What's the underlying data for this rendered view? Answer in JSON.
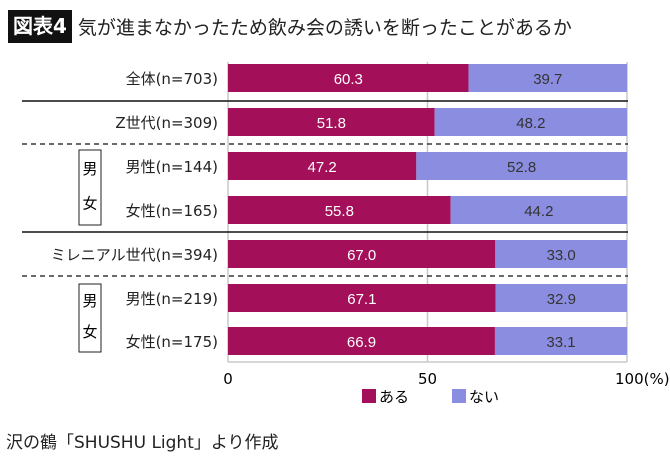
{
  "header": {
    "figure_label": "図表4",
    "title": "気が進まなかったため飲み会の誘いを断ったことがあるか"
  },
  "chart_data": {
    "type": "bar",
    "orientation": "horizontal",
    "stacked": true,
    "categories": [
      "全体(n=703)",
      "Z世代(n=309)",
      "男性(n=144)",
      "女性(n=165)",
      "ミレニアル世代(n=394)",
      "男性(n=219)",
      "女性(n=175)"
    ],
    "series": [
      {
        "name": "ある",
        "color": "#a30f58",
        "values": [
          60.3,
          51.8,
          47.2,
          55.8,
          67.0,
          67.1,
          66.9
        ]
      },
      {
        "name": "ない",
        "color": "#8b8ee0",
        "values": [
          39.7,
          48.2,
          52.8,
          44.2,
          33.0,
          32.9,
          33.1
        ]
      }
    ],
    "xlim": [
      0,
      100
    ],
    "xticks": [
      "0",
      "50",
      "100(%)"
    ],
    "grid": true,
    "legend": "bottom",
    "group_labels": [
      "男\n女",
      "男\n女"
    ]
  },
  "source": "沢の鶴「SHUSHU Light」より作成"
}
